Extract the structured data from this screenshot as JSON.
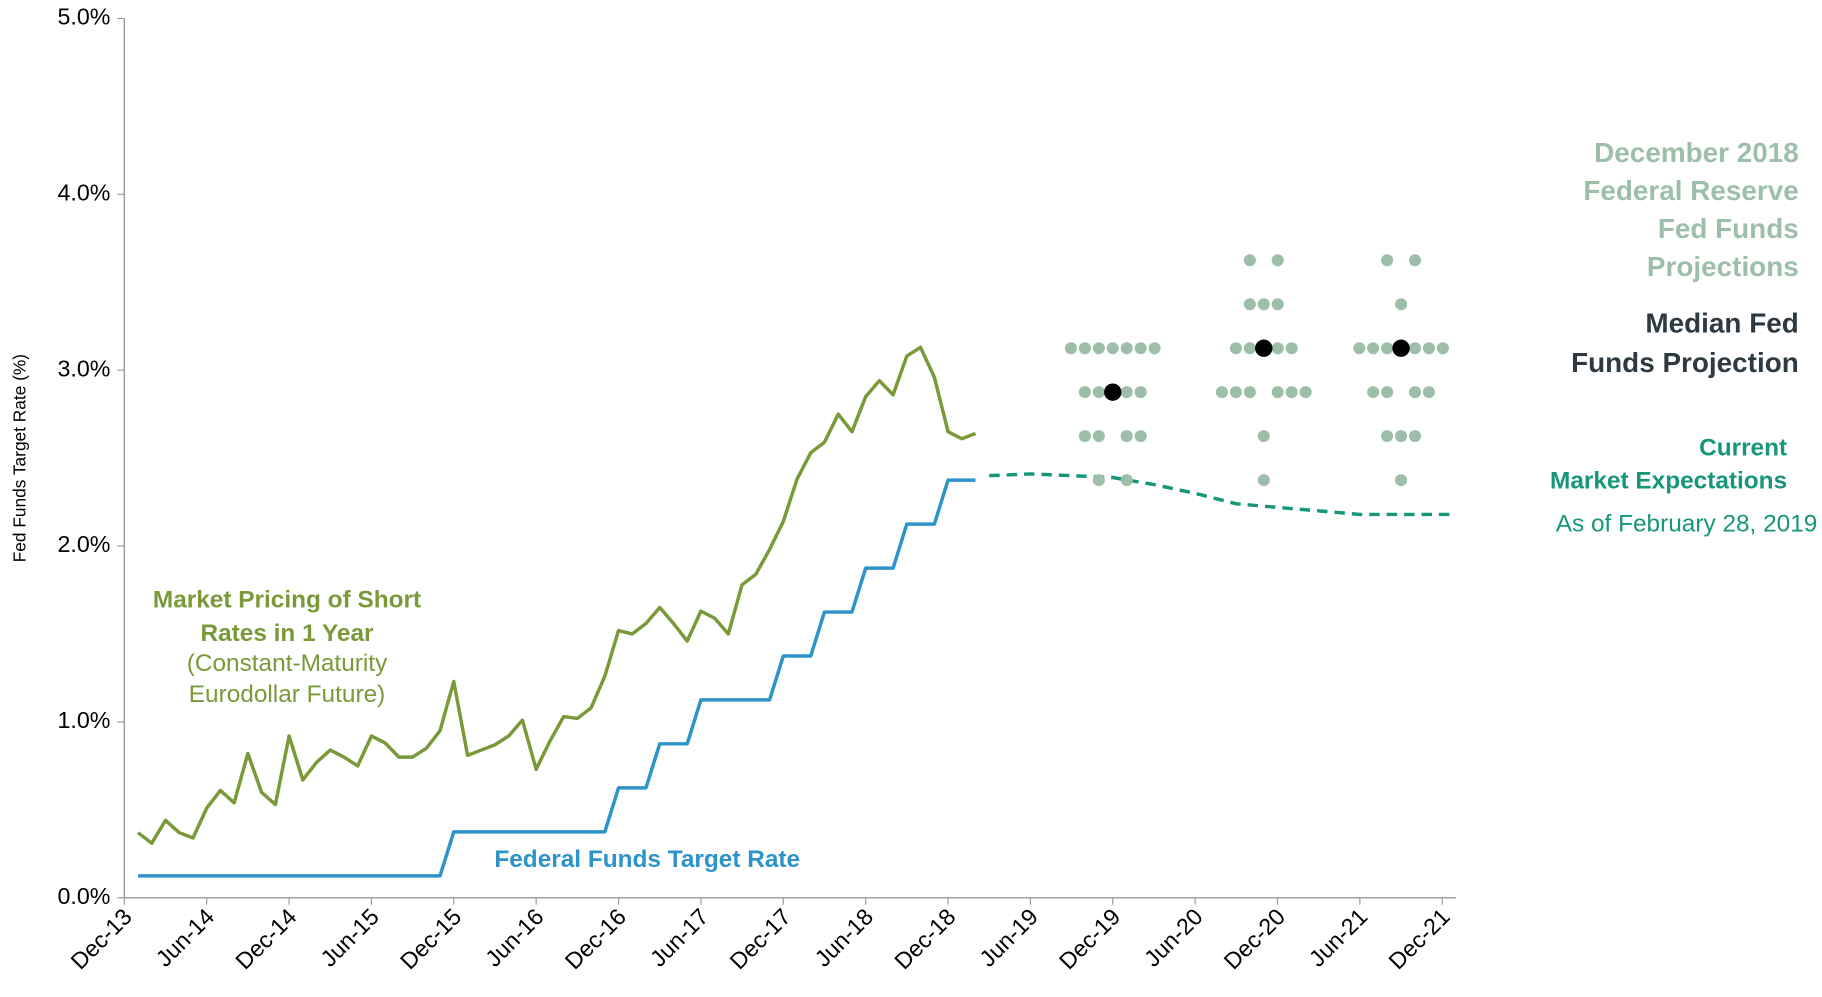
{
  "chart_data": {
    "type": "line",
    "ylabel": "Fed Funds Target Rate (%)",
    "xlim": [
      "2013-12",
      "2022-01"
    ],
    "xticks": [
      {
        "value": "2013-12",
        "label": "Dec-13"
      },
      {
        "value": "2014-06",
        "label": "Jun-14"
      },
      {
        "value": "2014-12",
        "label": "Dec-14"
      },
      {
        "value": "2015-06",
        "label": "Jun-15"
      },
      {
        "value": "2015-12",
        "label": "Dec-15"
      },
      {
        "value": "2016-06",
        "label": "Jun-16"
      },
      {
        "value": "2016-12",
        "label": "Dec-16"
      },
      {
        "value": "2017-06",
        "label": "Jun-17"
      },
      {
        "value": "2017-12",
        "label": "Dec-17"
      },
      {
        "value": "2018-06",
        "label": "Jun-18"
      },
      {
        "value": "2018-12",
        "label": "Dec-18"
      },
      {
        "value": "2019-06",
        "label": "Jun-19"
      },
      {
        "value": "2019-12",
        "label": "Dec-19"
      },
      {
        "value": "2020-06",
        "label": "Jun-20"
      },
      {
        "value": "2020-12",
        "label": "Dec-20"
      },
      {
        "value": "2021-06",
        "label": "Jun-21"
      },
      {
        "value": "2021-12",
        "label": "Dec-21"
      }
    ],
    "ylim": [
      0,
      5
    ],
    "yticks": [
      {
        "value": 0,
        "label": "0.0%"
      },
      {
        "value": 1,
        "label": "1.0%"
      },
      {
        "value": 2,
        "label": "2.0%"
      },
      {
        "value": 3,
        "label": "3.0%"
      },
      {
        "value": 4,
        "label": "4.0%"
      },
      {
        "value": 5,
        "label": "5.0%"
      }
    ],
    "series": [
      {
        "label": [
          "Market Pricing of Short",
          "Rates in 1 Year"
        ],
        "note": [
          "(Constant-Maturity",
          "Eurodollar Future)"
        ],
        "color": "#7a9a3a",
        "dashed": false,
        "x": [
          "2014-01",
          "2014-02",
          "2014-03",
          "2014-04",
          "2014-05",
          "2014-06",
          "2014-07",
          "2014-08",
          "2014-09",
          "2014-10",
          "2014-11",
          "2014-12",
          "2015-01",
          "2015-02",
          "2015-03",
          "2015-04",
          "2015-05",
          "2015-06",
          "2015-07",
          "2015-08",
          "2015-09",
          "2015-10",
          "2015-11",
          "2015-12",
          "2016-01",
          "2016-02",
          "2016-03",
          "2016-04",
          "2016-05",
          "2016-06",
          "2016-07",
          "2016-08",
          "2016-09",
          "2016-10",
          "2016-11",
          "2016-12",
          "2017-01",
          "2017-02",
          "2017-03",
          "2017-04",
          "2017-05",
          "2017-06",
          "2017-07",
          "2017-08",
          "2017-09",
          "2017-10",
          "2017-11",
          "2017-12",
          "2018-01",
          "2018-02",
          "2018-03",
          "2018-04",
          "2018-05",
          "2018-06",
          "2018-07",
          "2018-08",
          "2018-09",
          "2018-10",
          "2018-11",
          "2018-12",
          "2019-01",
          "2019-02"
        ],
        "values": [
          0.37,
          0.31,
          0.44,
          0.37,
          0.34,
          0.51,
          0.61,
          0.54,
          0.82,
          0.6,
          0.53,
          0.92,
          0.67,
          0.77,
          0.84,
          0.8,
          0.75,
          0.92,
          0.88,
          0.8,
          0.8,
          0.85,
          0.95,
          1.23,
          0.81,
          0.84,
          0.87,
          0.92,
          1.01,
          0.73,
          0.89,
          1.03,
          1.02,
          1.08,
          1.26,
          1.52,
          1.5,
          1.56,
          1.65,
          1.56,
          1.46,
          1.63,
          1.59,
          1.5,
          1.78,
          1.84,
          1.98,
          2.14,
          2.38,
          2.53,
          2.59,
          2.75,
          2.65,
          2.85,
          2.94,
          2.86,
          3.08,
          3.13,
          2.96,
          2.65,
          2.61,
          2.64
        ]
      },
      {
        "label": [
          "Federal Funds Target Rate"
        ],
        "note": [],
        "color": "#2e93c8",
        "dashed": false,
        "x": [
          "2014-01",
          "2014-02",
          "2014-03",
          "2014-04",
          "2014-05",
          "2014-06",
          "2014-07",
          "2014-08",
          "2014-09",
          "2014-10",
          "2014-11",
          "2014-12",
          "2015-01",
          "2015-02",
          "2015-03",
          "2015-04",
          "2015-05",
          "2015-06",
          "2015-07",
          "2015-08",
          "2015-09",
          "2015-10",
          "2015-11",
          "2015-12",
          "2016-01",
          "2016-02",
          "2016-03",
          "2016-04",
          "2016-05",
          "2016-06",
          "2016-07",
          "2016-08",
          "2016-09",
          "2016-10",
          "2016-11",
          "2016-12",
          "2017-01",
          "2017-02",
          "2017-03",
          "2017-04",
          "2017-05",
          "2017-06",
          "2017-07",
          "2017-08",
          "2017-09",
          "2017-10",
          "2017-11",
          "2017-12",
          "2018-01",
          "2018-02",
          "2018-03",
          "2018-04",
          "2018-05",
          "2018-06",
          "2018-07",
          "2018-08",
          "2018-09",
          "2018-10",
          "2018-11",
          "2018-12",
          "2019-01",
          "2019-02"
        ],
        "values": [
          0.125,
          0.125,
          0.125,
          0.125,
          0.125,
          0.125,
          0.125,
          0.125,
          0.125,
          0.125,
          0.125,
          0.125,
          0.125,
          0.125,
          0.125,
          0.125,
          0.125,
          0.125,
          0.125,
          0.125,
          0.125,
          0.125,
          0.125,
          0.375,
          0.375,
          0.375,
          0.375,
          0.375,
          0.375,
          0.375,
          0.375,
          0.375,
          0.375,
          0.375,
          0.375,
          0.625,
          0.625,
          0.625,
          0.875,
          0.875,
          0.875,
          1.125,
          1.125,
          1.125,
          1.125,
          1.125,
          1.125,
          1.375,
          1.375,
          1.375,
          1.625,
          1.625,
          1.625,
          1.875,
          1.875,
          1.875,
          2.125,
          2.125,
          2.125,
          2.375,
          2.375,
          2.375
        ]
      },
      {
        "label": [
          "Current",
          "Market Expectations"
        ],
        "note": [
          "As of February 28, 2019"
        ],
        "color": "#17967a",
        "dashed": true,
        "x": [
          "2019-03",
          "2019-06",
          "2019-09",
          "2019-12",
          "2020-03",
          "2020-06",
          "2020-09",
          "2020-12",
          "2021-03",
          "2021-06",
          "2021-09",
          "2021-12",
          "2022-01"
        ],
        "values": [
          2.4,
          2.41,
          2.4,
          2.39,
          2.35,
          2.3,
          2.24,
          2.22,
          2.2,
          2.18,
          2.18,
          2.18,
          2.18
        ]
      }
    ],
    "projections": {
      "label": [
        "December 2018",
        "Federal Reserve",
        "Fed Funds",
        "Projections"
      ],
      "color": "#9dbfaa",
      "median_label": [
        "Median Fed",
        "Funds Projection"
      ],
      "median_color": "#000000",
      "groups": [
        {
          "x": "2019-12",
          "median": 2.875,
          "levels": [
            {
              "value": 3.125,
              "count": 7
            },
            {
              "value": 2.875,
              "count": 4
            },
            {
              "value": 2.625,
              "count": 4
            },
            {
              "value": 2.375,
              "count": 2
            }
          ]
        },
        {
          "x": "2020-11",
          "median": 3.125,
          "levels": [
            {
              "value": 3.625,
              "count": 2
            },
            {
              "value": 3.375,
              "count": 3
            },
            {
              "value": 3.125,
              "count": 4
            },
            {
              "value": 2.875,
              "count": 6
            },
            {
              "value": 2.625,
              "count": 1
            },
            {
              "value": 2.375,
              "count": 1
            }
          ]
        },
        {
          "x": "2021-09",
          "median": 3.125,
          "levels": [
            {
              "value": 3.625,
              "count": 2
            },
            {
              "value": 3.375,
              "count": 1
            },
            {
              "value": 3.125,
              "count": 6
            },
            {
              "value": 2.875,
              "count": 4
            },
            {
              "value": 2.625,
              "count": 3
            },
            {
              "value": 2.375,
              "count": 1
            }
          ]
        }
      ]
    }
  }
}
